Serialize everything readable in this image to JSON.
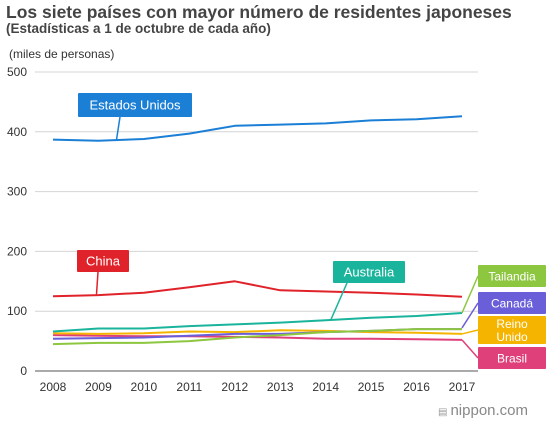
{
  "header": {
    "title": "Los siete países con mayor número de residentes japoneses",
    "subtitle": "(Estadísticas a 1 de octubre de cada año)"
  },
  "watermark": {
    "text": "nippon.com",
    "icon": "nippon-logo-icon"
  },
  "chart_data": {
    "type": "line",
    "title": "Los siete países con mayor número de residentes japoneses",
    "subtitle": "(Estadísticas a 1 de octubre de cada año)",
    "ylabel": "(miles de personas)",
    "xlabel": "",
    "x": [
      "2008",
      "2009",
      "2010",
      "2011",
      "2012",
      "2013",
      "2014",
      "2015",
      "2016",
      "2017"
    ],
    "ylim": [
      0,
      500
    ],
    "yticks": [
      0,
      100,
      200,
      300,
      400,
      500
    ],
    "grid": true,
    "legend": "callout labels",
    "series": [
      {
        "name": "Estados Unidos",
        "color": "#1b7fd6",
        "values": [
          387,
          385,
          388,
          397,
          410,
          412,
          414,
          419,
          421,
          426
        ]
      },
      {
        "name": "China",
        "color": "#e0222a",
        "values": [
          125,
          127,
          131,
          140,
          150,
          135,
          133,
          131,
          128,
          124
        ]
      },
      {
        "name": "Australia",
        "color": "#19b49b",
        "values": [
          66,
          71,
          71,
          75,
          78,
          81,
          85,
          89,
          92,
          97
        ]
      },
      {
        "name": "Tailandia",
        "color": "#8dc63f",
        "values": [
          45,
          47,
          47,
          50,
          56,
          60,
          65,
          67,
          70,
          70
        ]
      },
      {
        "name": "Canadá",
        "color": "#6a5fd9",
        "values": [
          54,
          55,
          56,
          59,
          62,
          62,
          65,
          67,
          70,
          70
        ]
      },
      {
        "name": "Reino Unido",
        "color": "#f5b400",
        "values": [
          63,
          62,
          63,
          66,
          65,
          68,
          67,
          65,
          64,
          62
        ]
      },
      {
        "name": "Brasil",
        "color": "#e0407a",
        "values": [
          60,
          59,
          58,
          58,
          57,
          56,
          54,
          54,
          53,
          52
        ]
      }
    ]
  }
}
